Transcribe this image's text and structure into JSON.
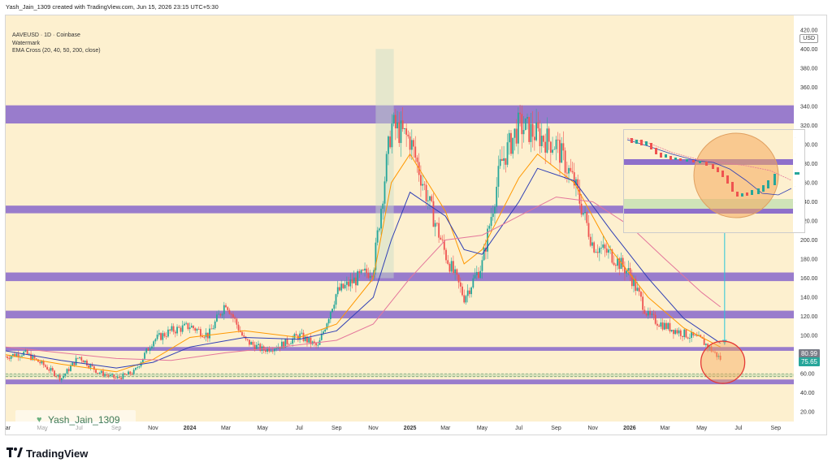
{
  "header": {
    "created_text": "Yash_Jain_1309 created with TradingView.com, Jun 15, 2026 23:15 UTC+5:30"
  },
  "legend": {
    "symbol_line": "AAVEUSD · 1D · Coinbase",
    "watermark_line": "Watermark",
    "indicator_line": "EMA Cross (20, 40, 50, 200, close)"
  },
  "currency": "USD",
  "watermark": {
    "text": "Yash_Jain_1309",
    "icon": "heart-icon"
  },
  "footer": {
    "brand": "TradingView",
    "logo_icon": "tradingview-logo-icon"
  },
  "price_tags": [
    {
      "value": "80.99",
      "color": "#787b86"
    },
    {
      "value": "75.65",
      "color": "#26a69a"
    }
  ],
  "colors": {
    "background": "#fdf0cf",
    "zone": "#8e6fcb",
    "bull": "#26a69a",
    "bear": "#ef5350",
    "ema_fast": "#ff9800",
    "ema_mid": "#2f3fb5",
    "ema_slow": "#e4769b",
    "arrow": "#26c6da",
    "circle": "#e53935"
  },
  "chart_data": {
    "type": "line",
    "title": "",
    "xlabel": "",
    "ylabel": "",
    "ylim": [
      10,
      430
    ],
    "yticks": [
      20,
      40,
      60,
      80,
      100,
      120,
      140,
      160,
      180,
      200,
      220,
      240,
      260,
      280,
      300,
      320,
      340,
      360,
      380,
      400,
      420
    ],
    "xticks": [
      "Mar",
      "May",
      "Jul",
      "Sep",
      "Nov",
      "2024",
      "Mar",
      "May",
      "Jul",
      "Sep",
      "Nov",
      "2025",
      "Mar",
      "May",
      "Jul",
      "Sep",
      "Nov",
      "2026",
      "Mar",
      "May",
      "Jul",
      "Sep"
    ],
    "x_start": "2023-03-01",
    "x_end": "2026-10-01",
    "tick_dates": [
      "2023-03-01",
      "2023-05-01",
      "2023-07-01",
      "2023-09-01",
      "2023-11-01",
      "2024-01-01",
      "2024-03-01",
      "2024-05-01",
      "2024-07-01",
      "2024-09-01",
      "2024-11-01",
      "2025-01-01",
      "2025-03-01",
      "2025-05-01",
      "2025-07-01",
      "2025-09-01",
      "2025-11-01",
      "2026-01-01",
      "2026-03-01",
      "2026-05-01",
      "2026-07-01",
      "2026-09-01"
    ],
    "zones": [
      {
        "low": 322,
        "high": 341
      },
      {
        "low": 228,
        "high": 236
      },
      {
        "low": 157,
        "high": 166
      },
      {
        "low": 118,
        "high": 126
      },
      {
        "low": 84,
        "high": 88
      },
      {
        "low": 49,
        "high": 54
      }
    ],
    "dashed_levels": [
      57,
      60
    ],
    "price": [
      [
        "2023-03-01",
        78
      ],
      [
        "2023-04-01",
        82
      ],
      [
        "2023-05-01",
        70
      ],
      [
        "2023-06-01",
        55
      ],
      [
        "2023-07-01",
        78
      ],
      [
        "2023-08-01",
        62
      ],
      [
        "2023-09-01",
        55
      ],
      [
        "2023-10-01",
        62
      ],
      [
        "2023-11-01",
        95
      ],
      [
        "2023-12-01",
        105
      ],
      [
        "2024-01-01",
        110
      ],
      [
        "2024-02-01",
        100
      ],
      [
        "2024-03-01",
        135
      ],
      [
        "2024-04-01",
        95
      ],
      [
        "2024-05-01",
        85
      ],
      [
        "2024-06-01",
        90
      ],
      [
        "2024-07-01",
        100
      ],
      [
        "2024-08-01",
        88
      ],
      [
        "2024-09-01",
        145
      ],
      [
        "2024-10-01",
        158
      ],
      [
        "2024-11-01",
        170
      ],
      [
        "2024-12-01",
        320
      ],
      [
        "2025-01-01",
        305
      ],
      [
        "2025-02-01",
        240
      ],
      [
        "2025-03-01",
        185
      ],
      [
        "2025-04-01",
        140
      ],
      [
        "2025-05-01",
        175
      ],
      [
        "2025-06-01",
        280
      ],
      [
        "2025-07-01",
        320
      ],
      [
        "2025-08-01",
        310
      ],
      [
        "2025-09-01",
        300
      ],
      [
        "2025-10-01",
        260
      ],
      [
        "2025-11-01",
        195
      ],
      [
        "2025-12-01",
        185
      ],
      [
        "2026-01-01",
        165
      ],
      [
        "2026-02-01",
        120
      ],
      [
        "2026-03-01",
        110
      ],
      [
        "2026-04-01",
        102
      ],
      [
        "2026-05-01",
        95
      ],
      [
        "2026-06-01",
        75.65
      ]
    ],
    "series": [
      {
        "values": [
          [
            "2023-03-01",
            80
          ],
          [
            "2023-06-01",
            70
          ],
          [
            "2023-09-01",
            62
          ],
          [
            "2023-11-01",
            75
          ],
          [
            "2024-01-01",
            98
          ],
          [
            "2024-04-01",
            105
          ],
          [
            "2024-07-01",
            98
          ],
          [
            "2024-09-01",
            112
          ],
          [
            "2024-11-01",
            160
          ],
          [
            "2024-12-01",
            260
          ],
          [
            "2025-01-01",
            290
          ],
          [
            "2025-03-01",
            230
          ],
          [
            "2025-04-01",
            175
          ],
          [
            "2025-05-01",
            190
          ],
          [
            "2025-07-01",
            265
          ],
          [
            "2025-08-01",
            290
          ],
          [
            "2025-10-01",
            260
          ],
          [
            "2025-12-01",
            190
          ],
          [
            "2026-02-01",
            140
          ],
          [
            "2026-04-01",
            108
          ],
          [
            "2026-06-01",
            88
          ]
        ]
      },
      {
        "values": [
          [
            "2023-03-01",
            84
          ],
          [
            "2023-06-01",
            74
          ],
          [
            "2023-09-01",
            66
          ],
          [
            "2023-11-01",
            72
          ],
          [
            "2024-01-01",
            88
          ],
          [
            "2024-04-01",
            98
          ],
          [
            "2024-07-01",
            96
          ],
          [
            "2024-09-01",
            105
          ],
          [
            "2024-11-01",
            140
          ],
          [
            "2024-12-01",
            200
          ],
          [
            "2025-01-01",
            250
          ],
          [
            "2025-03-01",
            225
          ],
          [
            "2025-04-01",
            190
          ],
          [
            "2025-05-01",
            185
          ],
          [
            "2025-07-01",
            240
          ],
          [
            "2025-08-01",
            275
          ],
          [
            "2025-10-01",
            262
          ],
          [
            "2025-12-01",
            210
          ],
          [
            "2026-02-01",
            160
          ],
          [
            "2026-04-01",
            118
          ],
          [
            "2026-06-01",
            92
          ]
        ]
      },
      {
        "values": [
          [
            "2023-03-01",
            88
          ],
          [
            "2023-09-01",
            76
          ],
          [
            "2023-12-01",
            74
          ],
          [
            "2024-03-01",
            82
          ],
          [
            "2024-06-01",
            88
          ],
          [
            "2024-09-01",
            95
          ],
          [
            "2024-11-01",
            112
          ],
          [
            "2025-01-01",
            160
          ],
          [
            "2025-03-01",
            200
          ],
          [
            "2025-05-01",
            205
          ],
          [
            "2025-07-01",
            225
          ],
          [
            "2025-09-01",
            245
          ],
          [
            "2025-11-01",
            240
          ],
          [
            "2026-01-01",
            215
          ],
          [
            "2026-03-01",
            180
          ],
          [
            "2026-05-01",
            145
          ],
          [
            "2026-06-01",
            130
          ]
        ]
      }
    ]
  },
  "inset": {
    "zone_low": 300,
    "zone_high": 306
  }
}
